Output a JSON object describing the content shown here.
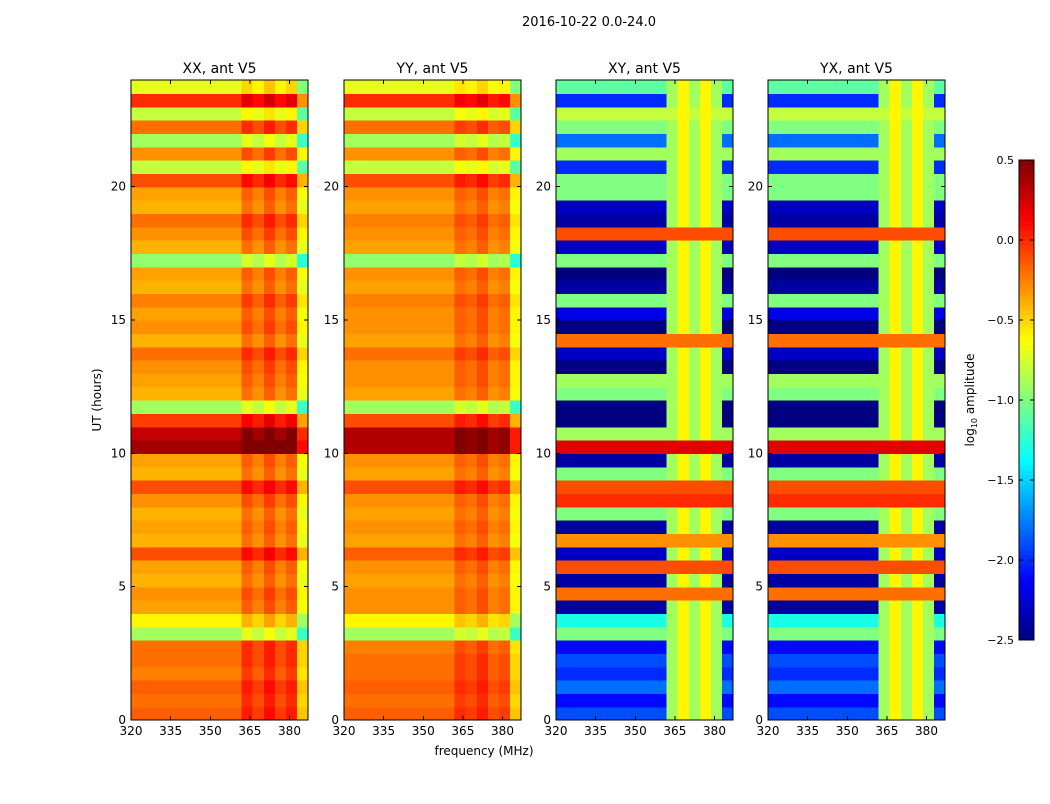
{
  "chart_data": {
    "type": "heatmap",
    "suptitle": "2016-10-22 0.0-24.0",
    "xlabel": "frequency (MHz)",
    "ylabel": "UT (hours)",
    "xlim": [
      320,
      387
    ],
    "ylim": [
      0,
      24
    ],
    "xticks": [
      320,
      335,
      350,
      365,
      380
    ],
    "yticks": [
      0,
      5,
      10,
      15,
      20
    ],
    "colormap": "jet",
    "colorbar": {
      "label_main": "log",
      "label_sub": "10",
      "label_rest": " amplitude",
      "vmin": -2.5,
      "vmax": 0.5,
      "ticks": [
        "0.5",
        "0.0",
        "−0.5",
        "−1.0",
        "−1.5",
        "−2.0",
        "−2.5"
      ],
      "tick_values": [
        0.5,
        0.0,
        -0.5,
        -1.0,
        -1.5,
        -2.0,
        -2.5
      ]
    },
    "grid_note": "rows: 48 bins of 0.5 h from 0 to 24 UT; cols: 16 frequency bins from 320 to 387 MHz; value = max(rows[r] + cols[c], col_floor[c]) in log10 amplitude",
    "panels": [
      {
        "title": "XX, ant V5",
        "rows": [
          -0.15,
          -0.2,
          -0.15,
          -0.25,
          -0.2,
          -0.2,
          -0.9,
          -0.6,
          -0.35,
          -0.3,
          -0.4,
          -0.35,
          -0.1,
          -0.4,
          -0.35,
          -0.4,
          -0.3,
          -0.1,
          -0.4,
          -0.35,
          0.4,
          0.3,
          -0.05,
          -0.9,
          -0.4,
          -0.35,
          -0.3,
          -0.2,
          -0.4,
          -0.3,
          -0.35,
          -0.25,
          -0.4,
          -0.35,
          -0.95,
          -0.4,
          -0.3,
          -0.2,
          -0.4,
          -0.35,
          -0.1,
          -0.8,
          -0.3,
          -0.9,
          -0.2,
          -0.8,
          0.0,
          -0.7
        ],
        "cols": [
          0,
          0,
          0,
          0,
          0,
          0,
          0,
          0,
          0,
          0,
          0.2,
          0.1,
          0.25,
          0.1,
          0.2,
          -0.3
        ],
        "col_floor": [
          -2.5,
          -2.5,
          -2.5,
          -2.5,
          -2.5,
          -2.5,
          -2.5,
          -2.5,
          -2.5,
          -2.5,
          -2.5,
          -2.5,
          -2.5,
          -2.5,
          -2.5,
          -2.5
        ]
      },
      {
        "title": "YY, ant V5",
        "rows": [
          -0.15,
          -0.2,
          -0.15,
          -0.2,
          -0.2,
          -0.25,
          -0.9,
          -0.6,
          -0.3,
          -0.3,
          -0.35,
          -0.3,
          -0.15,
          -0.35,
          -0.3,
          -0.35,
          -0.3,
          -0.1,
          -0.35,
          -0.3,
          0.35,
          0.35,
          -0.1,
          -0.9,
          -0.35,
          -0.3,
          -0.3,
          -0.2,
          -0.35,
          -0.3,
          -0.3,
          -0.25,
          -0.35,
          -0.3,
          -0.95,
          -0.35,
          -0.3,
          -0.25,
          -0.35,
          -0.3,
          -0.1,
          -0.8,
          -0.3,
          -0.9,
          -0.2,
          -0.8,
          0.0,
          -0.7
        ],
        "cols": [
          0,
          0,
          0,
          0,
          0,
          0,
          0,
          0,
          0,
          0,
          0.15,
          0.1,
          0.2,
          0.05,
          0.1,
          -0.3
        ],
        "col_floor": [
          -2.5,
          -2.5,
          -2.5,
          -2.5,
          -2.5,
          -2.5,
          -2.5,
          -2.5,
          -2.5,
          -2.5,
          -2.5,
          -2.5,
          -2.5,
          -2.5,
          -2.5,
          -2.5
        ]
      },
      {
        "title": "XY, ant V5",
        "rows": [
          -1.9,
          -2.1,
          -1.8,
          -2.0,
          -1.9,
          -2.1,
          -1.0,
          -1.3,
          -2.4,
          -0.2,
          -2.4,
          -0.1,
          -2.3,
          -0.3,
          -2.4,
          -1.0,
          0.0,
          -0.1,
          -1.0,
          -2.4,
          0.2,
          -0.9,
          -2.5,
          -2.5,
          -1.0,
          -0.9,
          -2.5,
          -2.3,
          -0.2,
          -2.5,
          -2.2,
          -1.0,
          -2.4,
          -2.5,
          -1.0,
          -2.3,
          -0.1,
          -2.4,
          -2.3,
          -1.0,
          -1.0,
          -2.0,
          -0.9,
          -1.8,
          -1.0,
          -0.8,
          -2.0,
          -1.1
        ],
        "cols": [
          0,
          0,
          0,
          0,
          0,
          0,
          0,
          0,
          0,
          0,
          0,
          0,
          0,
          0,
          0,
          0
        ],
        "col_floor": [
          -2.5,
          -2.5,
          -2.5,
          -2.5,
          -2.5,
          -2.5,
          -2.5,
          -2.5,
          -2.5,
          -2.5,
          -0.9,
          -0.6,
          -0.9,
          -0.6,
          -0.9,
          -2.5
        ]
      },
      {
        "title": "YX, ant V5",
        "rows": [
          -1.9,
          -2.1,
          -1.8,
          -2.0,
          -1.9,
          -2.1,
          -1.0,
          -1.3,
          -2.4,
          -0.2,
          -2.4,
          -0.1,
          -2.3,
          -0.3,
          -2.4,
          -1.0,
          0.0,
          -0.1,
          -1.0,
          -2.4,
          0.2,
          -0.9,
          -2.5,
          -2.5,
          -1.0,
          -0.9,
          -2.5,
          -2.3,
          -0.2,
          -2.5,
          -2.2,
          -1.0,
          -2.4,
          -2.5,
          -1.0,
          -2.3,
          -0.1,
          -2.4,
          -2.3,
          -1.0,
          -1.0,
          -2.0,
          -0.9,
          -1.8,
          -1.0,
          -0.8,
          -2.0,
          -1.1
        ],
        "cols": [
          0,
          0,
          0,
          0,
          0,
          0,
          0,
          0,
          0,
          0,
          0,
          0,
          0,
          0,
          0,
          0
        ],
        "col_floor": [
          -2.5,
          -2.5,
          -2.5,
          -2.5,
          -2.5,
          -2.5,
          -2.5,
          -2.5,
          -2.5,
          -2.5,
          -0.9,
          -0.6,
          -0.9,
          -0.6,
          -0.9,
          -2.5
        ]
      }
    ]
  }
}
